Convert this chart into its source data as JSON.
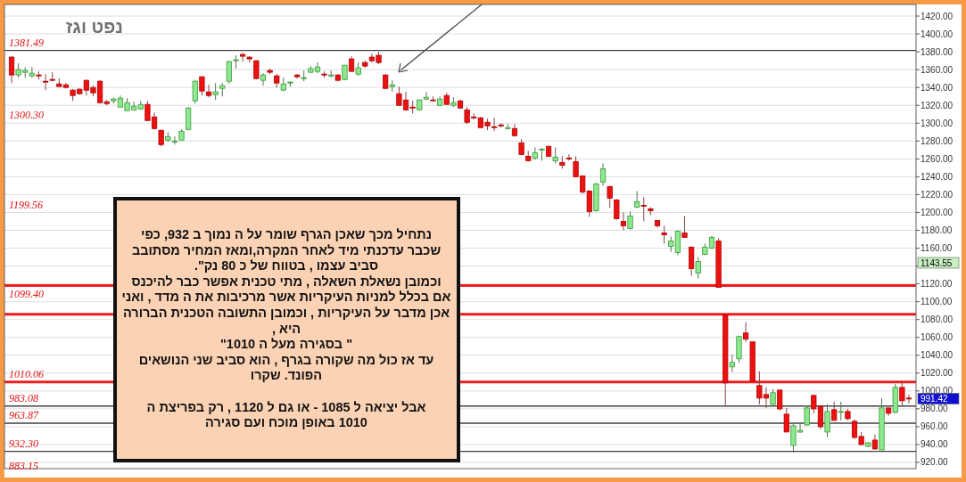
{
  "chart_data": {
    "type": "candlestick",
    "title": "נפט וגז",
    "categories": [
      null,
      null,
      null,
      null,
      null,
      null,
      null,
      null,
      null,
      null,
      null,
      null,
      null,
      null,
      null,
      null,
      null,
      null,
      null,
      null,
      null,
      null,
      null,
      null,
      null,
      null,
      null,
      null,
      null,
      null,
      null,
      null,
      null,
      null,
      null,
      null,
      null,
      null,
      null,
      null,
      null,
      null,
      null,
      null,
      null,
      null,
      null,
      null,
      null,
      null,
      null,
      null,
      null,
      null,
      null,
      null,
      null,
      null,
      null,
      null,
      null,
      null,
      null,
      null,
      null,
      null,
      null,
      null,
      null,
      null,
      null,
      null,
      null,
      null,
      null,
      null,
      null,
      null,
      null,
      null,
      null,
      null,
      null,
      null,
      null,
      null,
      null,
      null,
      null,
      null,
      null,
      null,
      null,
      null,
      null,
      null,
      null,
      null,
      null,
      null,
      null,
      null,
      null,
      null,
      null,
      null,
      null,
      null,
      null,
      null,
      null,
      null,
      null,
      null,
      null,
      null,
      null,
      null,
      null,
      null,
      null,
      null,
      null,
      null,
      null,
      null,
      null,
      null,
      null,
      null,
      null,
      null,
      null
    ],
    "ohlc": [
      [
        1374,
        1375,
        1345,
        1354
      ],
      [
        1354,
        1367,
        1351,
        1360
      ],
      [
        1357,
        1363,
        1351,
        1359
      ],
      [
        1353,
        1363,
        1351,
        1356
      ],
      [
        1354,
        1358,
        1349,
        1353
      ],
      [
        1347,
        1355,
        1337,
        1346
      ],
      [
        1349,
        1357,
        1347,
        1348
      ],
      [
        1344,
        1350,
        1341,
        1341
      ],
      [
        1343,
        1345,
        1339,
        1340
      ],
      [
        1337,
        1338,
        1325,
        1331
      ],
      [
        1338,
        1339,
        1332,
        1333
      ],
      [
        1348,
        1349,
        1331,
        1337
      ],
      [
        1340,
        1342,
        1330,
        1334
      ],
      [
        1347,
        1348,
        1322,
        1323
      ],
      [
        1324,
        1326,
        1320,
        1322
      ],
      [
        1325,
        1329,
        1322,
        1327
      ],
      [
        1318,
        1331,
        1318,
        1328
      ],
      [
        1314,
        1328,
        1314,
        1323
      ],
      [
        1315,
        1324,
        1314,
        1319
      ],
      [
        1316,
        1325,
        1315,
        1321
      ],
      [
        1321,
        1325,
        1303,
        1303
      ],
      [
        1307,
        1312,
        1293,
        1294
      ],
      [
        1292,
        1293,
        1274,
        1276
      ],
      [
        1281,
        1290,
        1279,
        1285
      ],
      [
        1279,
        1285,
        1276,
        1280
      ],
      [
        1281,
        1293,
        1281,
        1291
      ],
      [
        1293,
        1318,
        1292,
        1317
      ],
      [
        1325,
        1348,
        1322,
        1347
      ],
      [
        1352,
        1352,
        1331,
        1336
      ],
      [
        1335,
        1343,
        1329,
        1331
      ],
      [
        1332,
        1345,
        1326,
        1335
      ],
      [
        1339,
        1345,
        1330,
        1342
      ],
      [
        1347,
        1370,
        1344,
        1369
      ],
      [
        1370,
        1376,
        1361,
        1371
      ],
      [
        1377,
        1379,
        1369,
        1375
      ],
      [
        1374,
        1375,
        1368,
        1372
      ],
      [
        1370,
        1370,
        1349,
        1350
      ],
      [
        1348,
        1356,
        1342,
        1354
      ],
      [
        1359,
        1361,
        1355,
        1357
      ],
      [
        1353,
        1355,
        1340,
        1345
      ],
      [
        1337,
        1351,
        1336,
        1344
      ],
      [
        1345,
        1347,
        1341,
        1346
      ],
      [
        1354,
        1355,
        1350,
        1352
      ],
      [
        1350,
        1359,
        1347,
        1351
      ],
      [
        1357,
        1364,
        1356,
        1361
      ],
      [
        1358,
        1368,
        1356,
        1363
      ],
      [
        1355,
        1358,
        1351,
        1354
      ],
      [
        1353,
        1359,
        1351,
        1354
      ],
      [
        1354,
        1355,
        1347,
        1348
      ],
      [
        1349,
        1365,
        1348,
        1365
      ],
      [
        1372,
        1375,
        1358,
        1358
      ],
      [
        1355,
        1368,
        1353,
        1362
      ],
      [
        1368,
        1370,
        1362,
        1364
      ],
      [
        1374,
        1378,
        1368,
        1370
      ],
      [
        1376,
        1380,
        1366,
        1368
      ],
      [
        1354,
        1355,
        1338,
        1339
      ],
      [
        1341,
        1348,
        1335,
        1343
      ],
      [
        1333,
        1341,
        1320,
        1320
      ],
      [
        1326,
        1335,
        1314,
        1315
      ],
      [
        1318,
        1325,
        1311,
        1317
      ],
      [
        1315,
        1326,
        1314,
        1326
      ],
      [
        1327,
        1335,
        1326,
        1329
      ],
      [
        1326,
        1330,
        1325,
        1325
      ],
      [
        1320,
        1330,
        1319,
        1327
      ],
      [
        1331,
        1334,
        1321,
        1321
      ],
      [
        1320,
        1329,
        1318,
        1323
      ],
      [
        1325,
        1326,
        1316,
        1317
      ],
      [
        1315,
        1318,
        1299,
        1301
      ],
      [
        1307,
        1311,
        1304,
        1306
      ],
      [
        1306,
        1307,
        1295,
        1295
      ],
      [
        1301,
        1305,
        1292,
        1297
      ],
      [
        1296,
        1306,
        1291,
        1295
      ],
      [
        1298,
        1300,
        1295,
        1297
      ],
      [
        1294,
        1299,
        1293,
        1295
      ],
      [
        1294,
        1299,
        1285,
        1286
      ],
      [
        1278,
        1282,
        1264,
        1265
      ],
      [
        1263,
        1269,
        1257,
        1258
      ],
      [
        1261,
        1273,
        1259,
        1267
      ],
      [
        1270,
        1272,
        1258,
        1271
      ],
      [
        1274,
        1275,
        1262,
        1263
      ],
      [
        1258,
        1273,
        1255,
        1262
      ],
      [
        1256,
        1263,
        1249,
        1253
      ],
      [
        1261,
        1265,
        1258,
        1260
      ],
      [
        1257,
        1263,
        1240,
        1240
      ],
      [
        1241,
        1241,
        1221,
        1223
      ],
      [
        1224,
        1225,
        1195,
        1201
      ],
      [
        1202,
        1233,
        1201,
        1232
      ],
      [
        1234,
        1255,
        1230,
        1249
      ],
      [
        1229,
        1230,
        1205,
        1216
      ],
      [
        1214,
        1215,
        1192,
        1193
      ],
      [
        1190,
        1200,
        1180,
        1185
      ],
      [
        1182,
        1201,
        1181,
        1196
      ],
      [
        1206,
        1224,
        1205,
        1212
      ],
      [
        1208,
        1217,
        1190,
        1207
      ],
      [
        1204,
        1206,
        1197,
        1202
      ],
      [
        1191,
        1191,
        1183,
        1185
      ],
      [
        1177,
        1185,
        1165,
        1175
      ],
      [
        1162,
        1173,
        1156,
        1168
      ],
      [
        1155,
        1180,
        1152,
        1179
      ],
      [
        1177,
        1196,
        1172,
        1172
      ],
      [
        1161,
        1162,
        1129,
        1137
      ],
      [
        1132,
        1150,
        1126,
        1145
      ],
      [
        1153,
        1165,
        1152,
        1161
      ],
      [
        1160,
        1174,
        1159,
        1172
      ],
      [
        1168,
        1171,
        1116,
        1116
      ],
      [
        1085,
        1085,
        983,
        1009
      ],
      [
        1027,
        1041,
        1021,
        1032
      ],
      [
        1036,
        1062,
        1032,
        1061
      ],
      [
        1065,
        1077,
        1055,
        1058
      ],
      [
        1055,
        1055,
        1011,
        1011
      ],
      [
        1006,
        1022,
        985,
        992
      ],
      [
        996,
        1004,
        981,
        992
      ],
      [
        985,
        1002,
        983,
        998
      ],
      [
        1001,
        1001,
        978,
        980
      ],
      [
        974,
        981,
        954,
        954
      ],
      [
        939,
        965,
        931,
        961
      ],
      [
        954,
        965,
        953,
        956
      ],
      [
        962,
        984,
        961,
        981
      ],
      [
        995,
        996,
        975,
        980
      ],
      [
        983,
        984,
        957,
        960
      ],
      [
        954,
        985,
        948,
        977
      ],
      [
        979,
        988,
        967,
        967
      ],
      [
        976,
        988,
        967,
        977
      ],
      [
        977,
        980,
        967,
        969
      ],
      [
        966,
        968,
        946,
        948
      ],
      [
        949,
        954,
        939,
        940
      ],
      [
        938,
        943,
        937,
        942
      ],
      [
        945,
        951,
        934,
        935
      ],
      [
        934,
        992,
        934,
        981
      ],
      [
        981,
        981,
        972,
        975
      ],
      [
        976,
        1008,
        975,
        1004
      ],
      [
        1004,
        1009,
        983,
        989
      ],
      [
        992,
        996,
        986,
        991.42
      ]
    ],
    "ylim": [
      913,
      1433
    ],
    "yticks": [
      {
        "value": 920,
        "label": "920.00"
      },
      {
        "value": 940,
        "label": "940.00"
      },
      {
        "value": 960,
        "label": "960.00"
      },
      {
        "value": 980,
        "label": "980.00"
      },
      {
        "value": 1000,
        "label": "1000.00"
      },
      {
        "value": 1020,
        "label": "1020.00"
      },
      {
        "value": 1040,
        "label": "1040.00"
      },
      {
        "value": 1060,
        "label": "1060.00"
      },
      {
        "value": 1080,
        "label": "1080.00"
      },
      {
        "value": 1100,
        "label": "1100.00"
      },
      {
        "value": 1120,
        "label": "1120.00"
      },
      {
        "value": 1140,
        "label": null
      },
      {
        "value": 1160,
        "label": "1160.00"
      },
      {
        "value": 1180,
        "label": "1180.00"
      },
      {
        "value": 1200,
        "label": "1200.00"
      },
      {
        "value": 1220,
        "label": "1220.00"
      },
      {
        "value": 1240,
        "label": "1240.00"
      },
      {
        "value": 1260,
        "label": "1260.00"
      },
      {
        "value": 1280,
        "label": "1280.00"
      },
      {
        "value": 1300,
        "label": "1300.00"
      },
      {
        "value": 1320,
        "label": "1320.00"
      },
      {
        "value": 1340,
        "label": "1340.00"
      },
      {
        "value": 1360,
        "label": "1360.00"
      },
      {
        "value": 1380,
        "label": "1380.00"
      },
      {
        "value": 1400,
        "label": "1400.00"
      },
      {
        "value": 1420,
        "label": "1420.00"
      }
    ],
    "grid": "y",
    "ref_lines": [
      {
        "axis": "y",
        "value": 1381.49,
        "label": "1381.49",
        "color": "#404040"
      },
      {
        "axis": "y",
        "value": 1010.06,
        "label": "1010.06",
        "color": "#ee1c1c"
      },
      {
        "axis": "y",
        "value": 983.08,
        "label": "983.08",
        "color": "#404040"
      },
      {
        "axis": "y",
        "value": 963.87,
        "label": "963.87",
        "color": "#404040"
      },
      {
        "axis": "y",
        "value": 932.3,
        "label": "932.30",
        "color": "#404040"
      },
      {
        "axis": "y",
        "value": 1118,
        "color": "#ee1c1c"
      },
      {
        "axis": "y",
        "value": 1086,
        "color": "#ee1c1c"
      }
    ],
    "annotations": [
      "נתחיל מכך שאכן הגרף שומר על ה נמוך ב 932, כפי\nשכבר עדכנתי מיד לאחר המקרה,ומאז המחיר מסתובב\nסביב עצמו , בטווח של כ 80 נק\".\nוכמובן נשאלת השאלה , מתי טכנית אפשר כבר להיכנס\nאם בכלל למניות העיקריות אשר מרכיבות את ה מדד , ואני\nאכן מדבר על העיקריות , וכמובן התשובה הטכנית הברורה\nהיא ,\n\" בסגירה מעל ה 1010\"\nעד אז כול מה שקורה בגרף , הוא סביב שני הנושאים\nהפונד. שקרו\n\nאבל יציאה ל 1085 - או גם ל 1120 , רק בפריצת ה\n1010 באופן מוכח ועם סגירה",
      "1300.30",
      "1199.56",
      "1099.40",
      "883.15",
      "1143.55",
      "991.42"
    ]
  }
}
